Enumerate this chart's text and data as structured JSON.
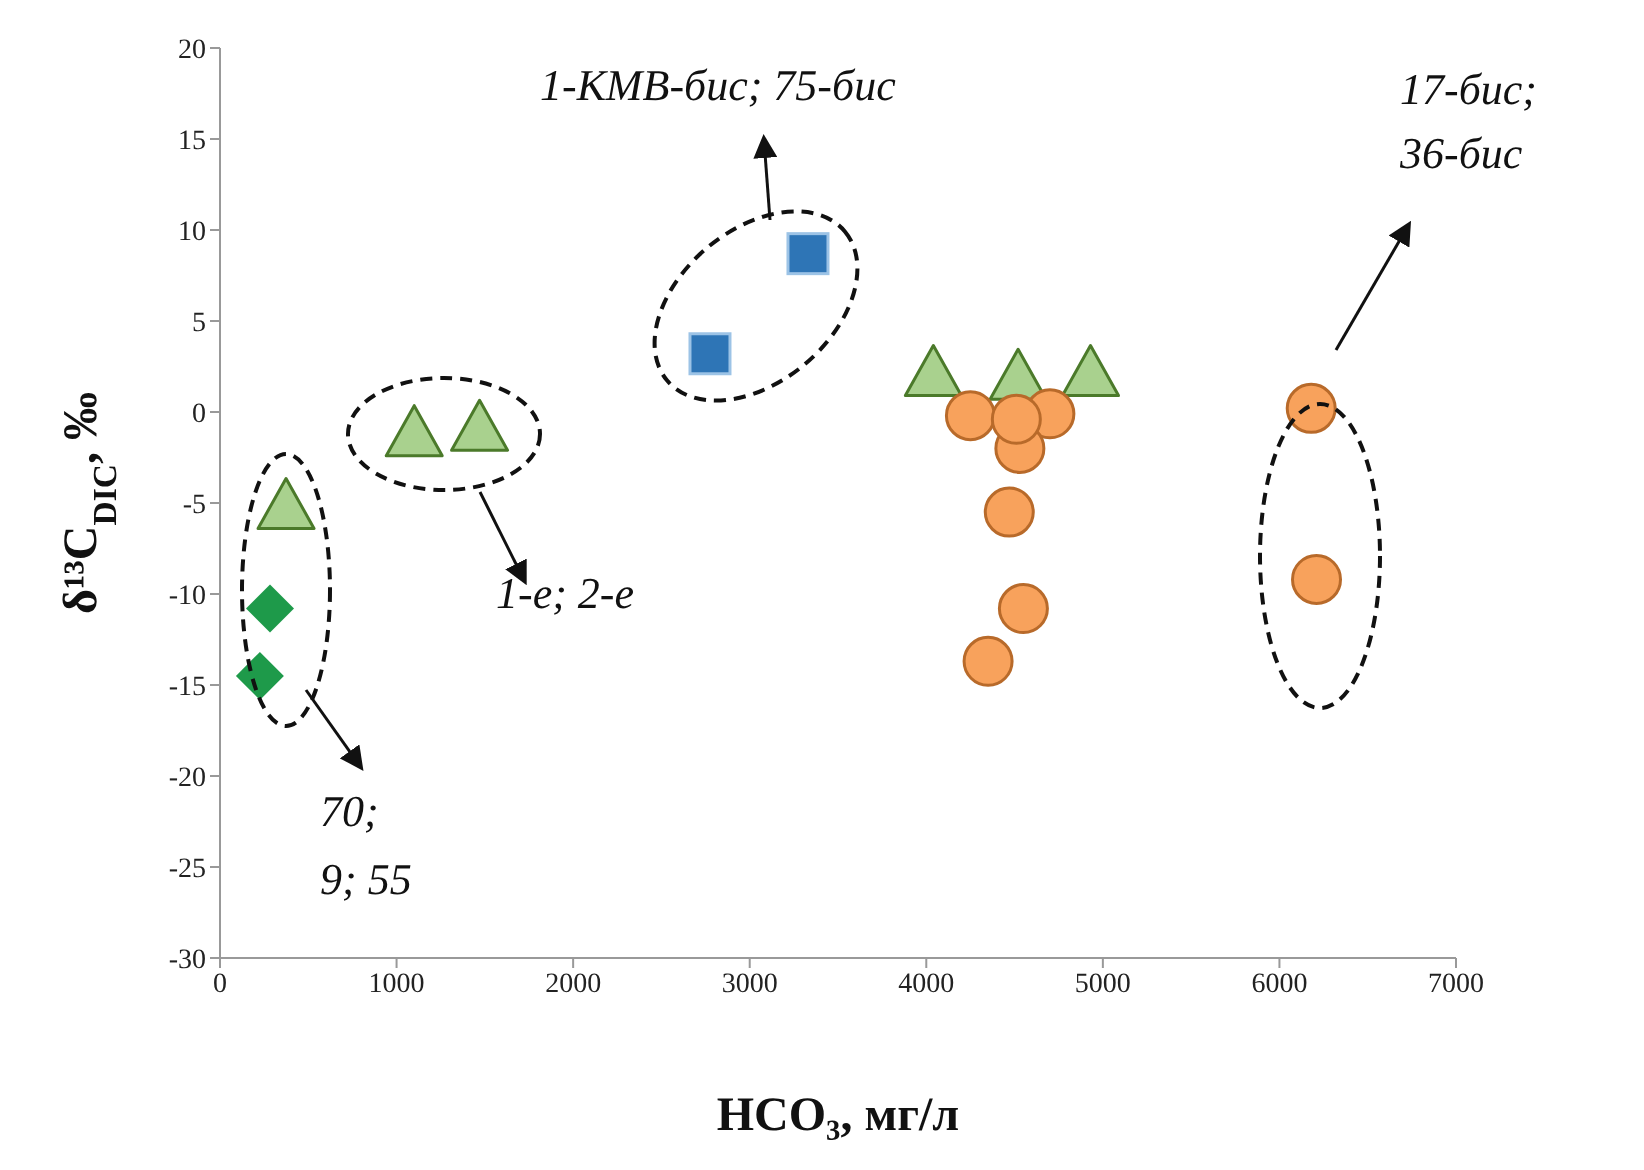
{
  "chart_data": {
    "type": "scatter",
    "xlabel": "HCO₃, мг/л",
    "ylabel": "δ¹³C$_{DIC}$, ‰",
    "xlim": [
      0,
      7000
    ],
    "xticks": [
      0,
      1000,
      2000,
      3000,
      4000,
      5000,
      6000,
      7000
    ],
    "ylim": [
      -30,
      20
    ],
    "yticks": [
      -30,
      -25,
      -20,
      -15,
      -10,
      -5,
      0,
      5,
      10,
      15,
      20
    ],
    "series": [
      {
        "color": "#1e9a4a",
        "marker": "diamond",
        "x": [
          283,
          226
        ],
        "values": [
          -10.8,
          -14.5
        ]
      },
      {
        "color": "#a9d18e",
        "marker": "triangle",
        "x": [
          374,
          1100,
          1470,
          4040,
          4520,
          4930
        ],
        "values": [
          -5.3,
          -1.3,
          -1.0,
          2.0,
          1.8,
          2.0
        ]
      },
      {
        "color": "#2e75b6",
        "marker": "square",
        "x": [
          2775,
          3330
        ],
        "values": [
          3.2,
          8.7
        ]
      },
      {
        "color": "#f8a25c",
        "marker": "circle",
        "x": [
          4250,
          4700,
          4530,
          4510,
          4470,
          4550,
          4350,
          6180,
          6210
        ],
        "values": [
          -0.2,
          -0.1,
          -2.0,
          -0.4,
          -5.5,
          -10.8,
          -13.7,
          0.2,
          -9.2
        ]
      }
    ],
    "annotations": [
      "1-КМВ-бис; 75-бис",
      "17-бис;\n36-бис",
      "1-е; 2-е",
      "70;\n9; 55"
    ]
  }
}
